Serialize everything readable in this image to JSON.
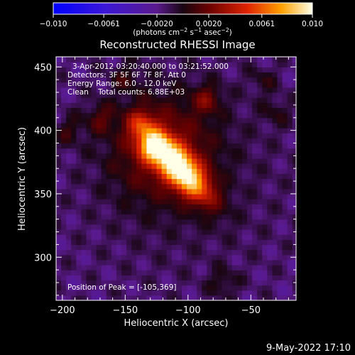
{
  "colorbar": {
    "ticks": [
      "-0.010",
      "-0.0061",
      "-0.0020",
      "0.0020",
      "0.0061",
      "0.010"
    ],
    "tick_values": [
      -0.01,
      -0.0061,
      -0.002,
      0.002,
      0.0061,
      0.01
    ],
    "range": [
      -0.01,
      0.01
    ],
    "units_prefix": "(photons cm",
    "units_exp1": "−2",
    "units_mid": " s",
    "units_exp2": "−1",
    "units_mid2": " asec",
    "units_exp3": "−2",
    "units_suffix": ")"
  },
  "info": {
    "time": "3-Apr-2012 03:20:40.000 to 03:21:52.000",
    "detectors": "Detectors: 3F 5F 6F 7F 8F, Att 0",
    "energy": "Energy Range: 6.0 - 12.0 keV",
    "clean": "Clean    Total counts: 6.88E+03",
    "peak": "Position of Peak = [-105,369]"
  },
  "footer": {
    "timestamp": "9-May-2022 17:10"
  },
  "chart_data": {
    "type": "heatmap",
    "title": "Reconstructed RHESSI Image",
    "xlabel": "Heliocentric X (arcsec)",
    "ylabel": "Heliocentric Y (arcsec)",
    "xlim": [
      -205,
      -14
    ],
    "ylim": [
      266,
      458
    ],
    "x_ticks": [
      -200,
      -150,
      -100,
      -50
    ],
    "y_ticks": [
      300,
      350,
      400,
      450
    ],
    "x_tick_labels": [
      "−200",
      "−150",
      "−100",
      "−50"
    ],
    "y_tick_labels": [
      "300",
      "350",
      "400",
      "450"
    ],
    "peak": {
      "x": -105,
      "y": 369,
      "value": 0.01
    },
    "secondary_sources": [
      {
        "x": -128,
        "y": 388,
        "value": 0.0055
      },
      {
        "x": -138,
        "y": 405,
        "value": 0.0035
      },
      {
        "x": -85,
        "y": 425,
        "value": 0.0028
      },
      {
        "x": -170,
        "y": 410,
        "value": 0.0022
      },
      {
        "x": -195,
        "y": 400,
        "value": 0.0018
      },
      {
        "x": -150,
        "y": 442,
        "value": 0.0016
      },
      {
        "x": -30,
        "y": 415,
        "value": 0.0015
      },
      {
        "x": -72,
        "y": 280,
        "value": 0.0018
      },
      {
        "x": -40,
        "y": 440,
        "value": 0.0014
      }
    ],
    "background_range": [
      -0.003,
      0.0
    ]
  },
  "colors": {
    "background": "#000000",
    "foreground": "#ffffff"
  }
}
